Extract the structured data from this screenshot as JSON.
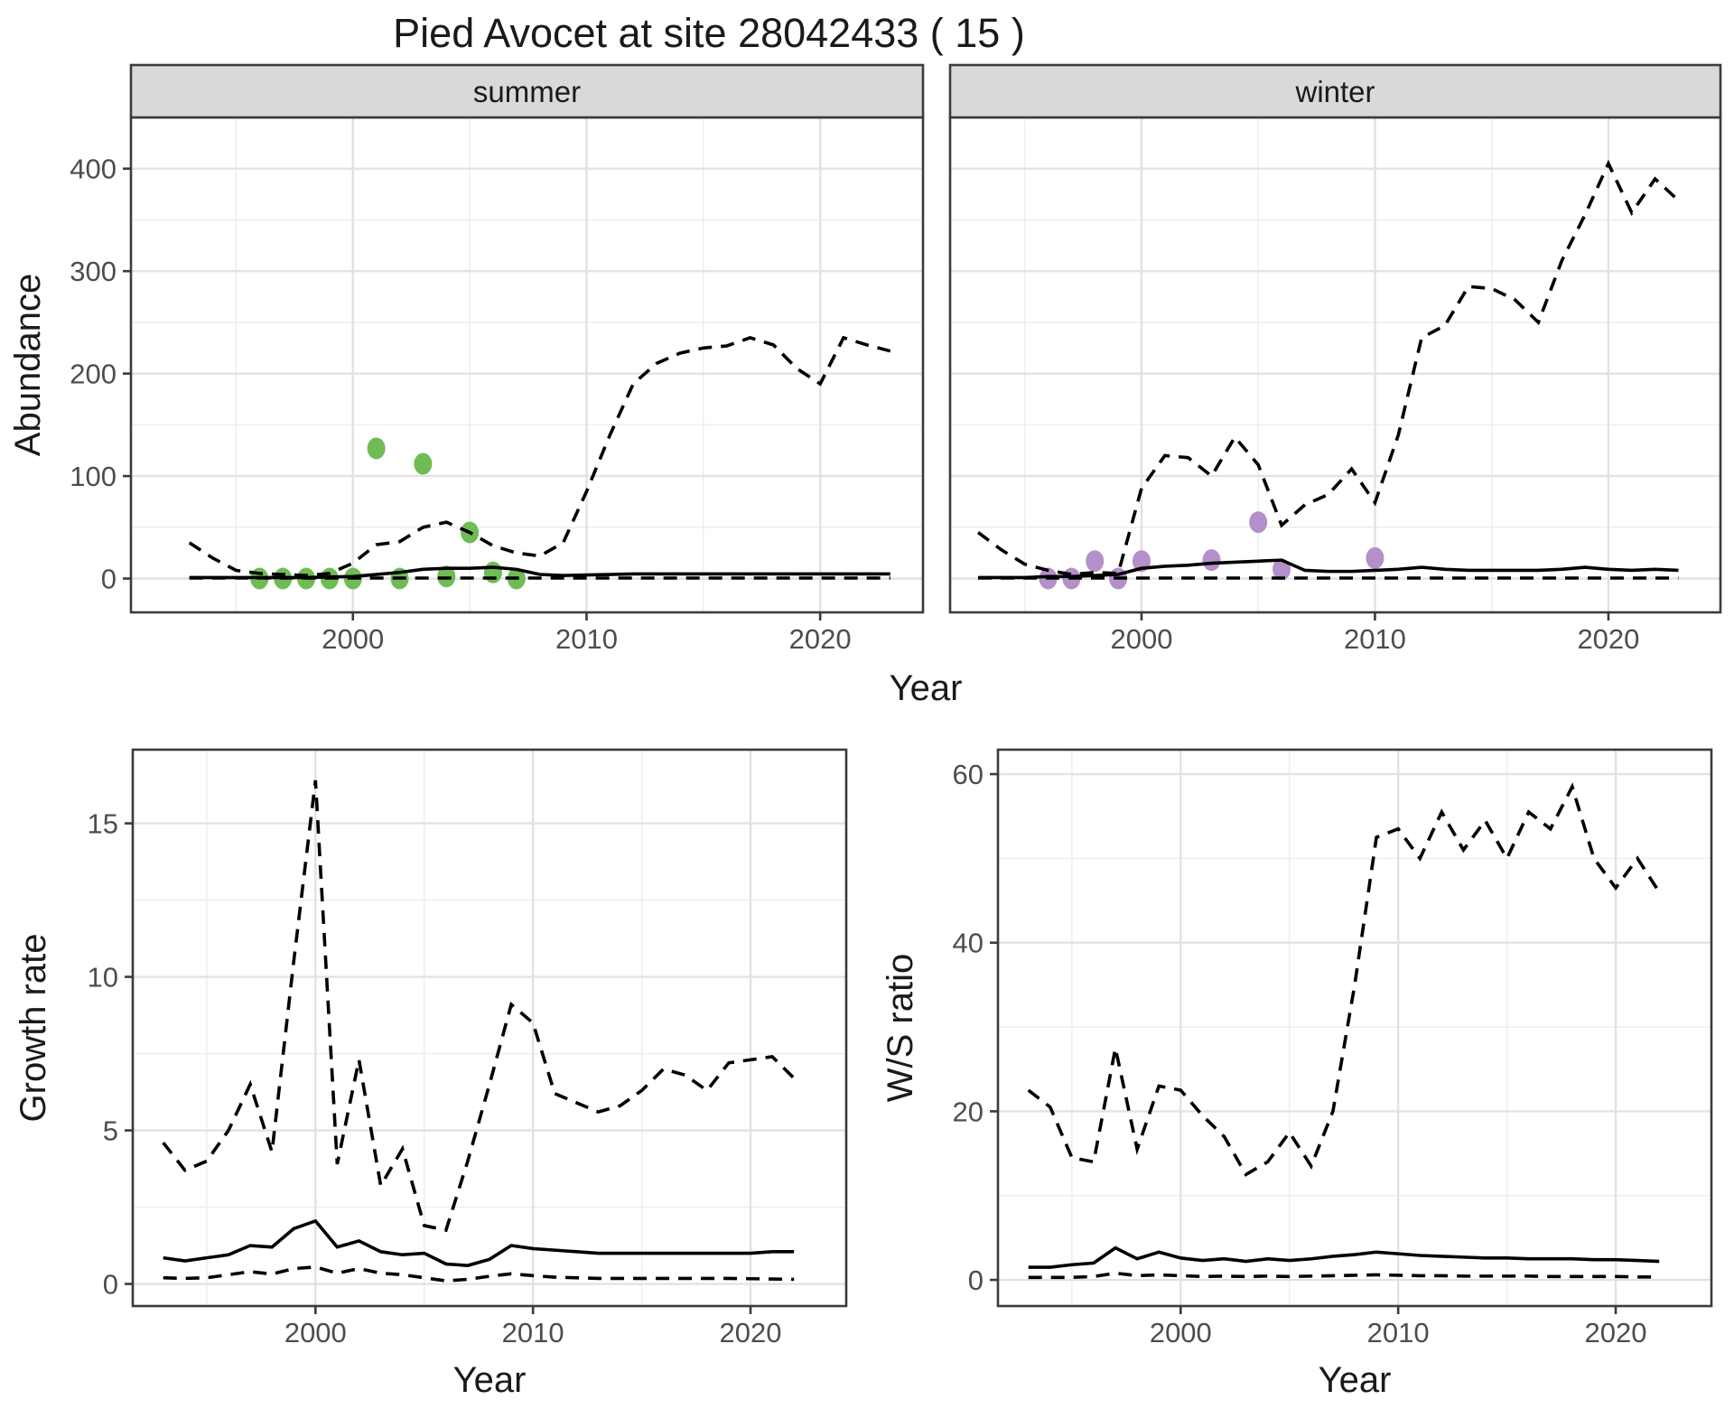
{
  "title": "Pied Avocet at site 28042433 ( 15 )",
  "colors": {
    "summer_points": "#6FBC55",
    "winter_points": "#B58FC9",
    "line": "#000000",
    "strip_bg": "#D9D9D9",
    "panel_border": "#3B3B3B",
    "grid_major": "#E2E2E2",
    "grid_minor": "#EFEFEF",
    "tick_text": "#4d4d4d"
  },
  "chart_data": [
    {
      "id": "abundance_summer",
      "type": "line",
      "facet_label": "summer",
      "xlabel": "Year",
      "ylabel": "Abundance",
      "xlim": [
        1990.5,
        2024.4
      ],
      "ylim": [
        -33,
        450
      ],
      "xticks": [
        2000,
        2010,
        2020
      ],
      "yticks": [
        0,
        100,
        200,
        300,
        400
      ],
      "x": [
        1993,
        1994,
        1995,
        1996,
        1997,
        1998,
        1999,
        2000,
        2001,
        2002,
        2003,
        2004,
        2005,
        2006,
        2007,
        2008,
        2009,
        2010,
        2011,
        2012,
        2013,
        2014,
        2015,
        2016,
        2017,
        2018,
        2019,
        2020,
        2021,
        2022,
        2023
      ],
      "series": [
        {
          "name": "median",
          "style": "solid",
          "values": [
            1,
            1,
            1,
            1,
            1,
            1,
            1.5,
            2,
            4,
            6,
            9,
            10,
            10,
            11,
            9,
            4,
            3,
            3.5,
            4,
            4.5,
            4.5,
            4.5,
            4.5,
            4.5,
            4.5,
            4.5,
            4.5,
            4.5,
            4.5,
            4.5,
            4.5
          ]
        },
        {
          "name": "upper_ci",
          "style": "dashed",
          "values": [
            35,
            20,
            8,
            5,
            4,
            3,
            5,
            15,
            33,
            36,
            50,
            55,
            45,
            32,
            25,
            22,
            35,
            85,
            140,
            190,
            210,
            220,
            225,
            227,
            235,
            228,
            205,
            190,
            235,
            228,
            222
          ]
        },
        {
          "name": "lower_ci",
          "style": "dashed",
          "values": [
            0.5,
            0.5,
            0.5,
            0.5,
            0.5,
            0.5,
            0.5,
            0.5,
            0.5,
            0.5,
            0.5,
            0.5,
            0.5,
            0.5,
            0.5,
            0.5,
            0.5,
            0.5,
            0.5,
            0.5,
            0.5,
            0.5,
            0.5,
            0.5,
            0.5,
            0.5,
            0.5,
            0.5,
            0.5,
            0.5,
            0.5
          ]
        }
      ],
      "points": {
        "name": "observed_counts",
        "color": "#6FBC55",
        "xy": [
          [
            1996,
            0
          ],
          [
            1997,
            0
          ],
          [
            1998,
            0
          ],
          [
            1999,
            0
          ],
          [
            2000,
            0
          ],
          [
            2001,
            127
          ],
          [
            2002,
            0
          ],
          [
            2003,
            112
          ],
          [
            2004,
            2
          ],
          [
            2005,
            45
          ],
          [
            2006,
            6
          ],
          [
            2007,
            0
          ]
        ]
      }
    },
    {
      "id": "abundance_winter",
      "type": "line",
      "facet_label": "winter",
      "xlabel": "Year",
      "ylabel": "Abundance",
      "xlim": [
        1991.8,
        2024.8
      ],
      "ylim": [
        -33,
        450
      ],
      "xticks": [
        2000,
        2010,
        2020
      ],
      "yticks": [
        0,
        100,
        200,
        300,
        400
      ],
      "x": [
        1993,
        1994,
        1995,
        1996,
        1997,
        1998,
        1999,
        2000,
        2001,
        2002,
        2003,
        2004,
        2005,
        2006,
        2007,
        2008,
        2009,
        2010,
        2011,
        2012,
        2013,
        2014,
        2015,
        2016,
        2017,
        2018,
        2019,
        2020,
        2021,
        2022,
        2023
      ],
      "series": [
        {
          "name": "median",
          "style": "solid",
          "values": [
            1,
            1,
            1,
            2,
            2,
            3,
            4,
            10,
            12,
            13,
            15,
            16,
            17,
            18,
            8,
            7,
            7,
            8,
            9,
            11,
            9,
            8,
            8,
            8,
            8,
            9,
            11,
            9,
            8,
            9,
            8
          ]
        },
        {
          "name": "upper_ci",
          "style": "dashed",
          "values": [
            45,
            28,
            14,
            8,
            4,
            6,
            5,
            88,
            120,
            118,
            100,
            138,
            111,
            52,
            72,
            82,
            107,
            74,
            140,
            235,
            247,
            285,
            283,
            272,
            250,
            310,
            355,
            405,
            357,
            390,
            369
          ]
        },
        {
          "name": "lower_ci",
          "style": "dashed",
          "values": [
            0.5,
            0.5,
            0.5,
            0.5,
            0.5,
            0.5,
            0.5,
            0.5,
            0.5,
            0.5,
            0.5,
            0.5,
            0.5,
            0.5,
            0.5,
            0.5,
            0.5,
            0.5,
            0.5,
            0.5,
            0.5,
            0.5,
            0.5,
            0.5,
            0.5,
            0.5,
            0.5,
            0.5,
            0.5,
            0.5,
            0.5
          ]
        }
      ],
      "points": {
        "name": "observed_counts",
        "color": "#B58FC9",
        "xy": [
          [
            1996,
            0
          ],
          [
            1997,
            0
          ],
          [
            1998,
            17
          ],
          [
            1999,
            0
          ],
          [
            2000,
            17
          ],
          [
            2003,
            18
          ],
          [
            2005,
            55
          ],
          [
            2006,
            9
          ],
          [
            2010,
            20
          ]
        ]
      }
    },
    {
      "id": "growth_rate",
      "type": "line",
      "facet_label": null,
      "xlabel": "Year",
      "ylabel": "Growth rate",
      "xlim": [
        1991.6,
        2024.4
      ],
      "ylim": [
        -0.72,
        17.4
      ],
      "xticks": [
        2000,
        2010,
        2020
      ],
      "yticks": [
        0,
        5,
        10,
        15
      ],
      "x": [
        1993,
        1994,
        1995,
        1996,
        1997,
        1998,
        1999,
        2000,
        2001,
        2002,
        2003,
        2004,
        2005,
        2006,
        2007,
        2008,
        2009,
        2010,
        2011,
        2012,
        2013,
        2014,
        2015,
        2016,
        2017,
        2018,
        2019,
        2020,
        2021,
        2022
      ],
      "series": [
        {
          "name": "median",
          "style": "solid",
          "values": [
            0.85,
            0.75,
            0.85,
            0.95,
            1.25,
            1.2,
            1.8,
            2.05,
            1.2,
            1.4,
            1.05,
            0.95,
            1.0,
            0.65,
            0.6,
            0.8,
            1.25,
            1.15,
            1.1,
            1.05,
            1.0,
            1.0,
            1.0,
            1.0,
            1.0,
            1.0,
            1.0,
            1.0,
            1.05,
            1.05
          ]
        },
        {
          "name": "upper_ci",
          "style": "dashed",
          "values": [
            4.6,
            3.7,
            4.0,
            5.0,
            6.5,
            4.3,
            10.5,
            16.4,
            3.9,
            7.3,
            3.2,
            4.4,
            1.9,
            1.75,
            4.0,
            6.5,
            9.1,
            8.5,
            6.2,
            5.9,
            5.6,
            5.8,
            6.3,
            7.0,
            6.8,
            6.3,
            7.2,
            7.3,
            7.4,
            6.7
          ]
        },
        {
          "name": "lower_ci",
          "style": "dashed",
          "values": [
            0.2,
            0.18,
            0.2,
            0.3,
            0.4,
            0.32,
            0.5,
            0.55,
            0.35,
            0.5,
            0.35,
            0.3,
            0.2,
            0.1,
            0.15,
            0.25,
            0.33,
            0.27,
            0.22,
            0.2,
            0.18,
            0.18,
            0.18,
            0.18,
            0.18,
            0.18,
            0.18,
            0.17,
            0.16,
            0.15
          ]
        }
      ],
      "points": null
    },
    {
      "id": "ws_ratio",
      "type": "line",
      "facet_label": null,
      "xlabel": "Year",
      "ylabel": "W/S ratio",
      "xlim": [
        1991.6,
        2024.4
      ],
      "ylim": [
        -3.1,
        62.9
      ],
      "xticks": [
        2000,
        2010,
        2020
      ],
      "yticks": [
        0,
        20,
        40,
        60
      ],
      "x": [
        1993,
        1994,
        1995,
        1996,
        1997,
        1998,
        1999,
        2000,
        2001,
        2002,
        2003,
        2004,
        2005,
        2006,
        2007,
        2008,
        2009,
        2010,
        2011,
        2012,
        2013,
        2014,
        2015,
        2016,
        2017,
        2018,
        2019,
        2020,
        2021,
        2022
      ],
      "series": [
        {
          "name": "median",
          "style": "solid",
          "values": [
            1.5,
            1.5,
            1.8,
            2.0,
            3.8,
            2.5,
            3.3,
            2.6,
            2.3,
            2.5,
            2.2,
            2.5,
            2.3,
            2.5,
            2.8,
            3.0,
            3.3,
            3.1,
            2.9,
            2.8,
            2.7,
            2.6,
            2.6,
            2.5,
            2.5,
            2.5,
            2.4,
            2.4,
            2.3,
            2.2
          ]
        },
        {
          "name": "upper_ci",
          "style": "dashed",
          "values": [
            22.5,
            20.5,
            14.5,
            14,
            27.5,
            15.5,
            23,
            22.5,
            19.5,
            17,
            12.5,
            14,
            17.5,
            13.5,
            20,
            35,
            52.5,
            53.5,
            50,
            55.5,
            51,
            54.5,
            50,
            55.5,
            53.5,
            58.5,
            50,
            46.5,
            50,
            46
          ]
        },
        {
          "name": "lower_ci",
          "style": "dashed",
          "values": [
            0.3,
            0.3,
            0.3,
            0.4,
            0.8,
            0.5,
            0.6,
            0.5,
            0.4,
            0.45,
            0.4,
            0.45,
            0.4,
            0.45,
            0.5,
            0.55,
            0.6,
            0.55,
            0.5,
            0.5,
            0.45,
            0.45,
            0.45,
            0.45,
            0.4,
            0.4,
            0.4,
            0.4,
            0.35,
            0.35
          ]
        }
      ],
      "points": null
    }
  ]
}
